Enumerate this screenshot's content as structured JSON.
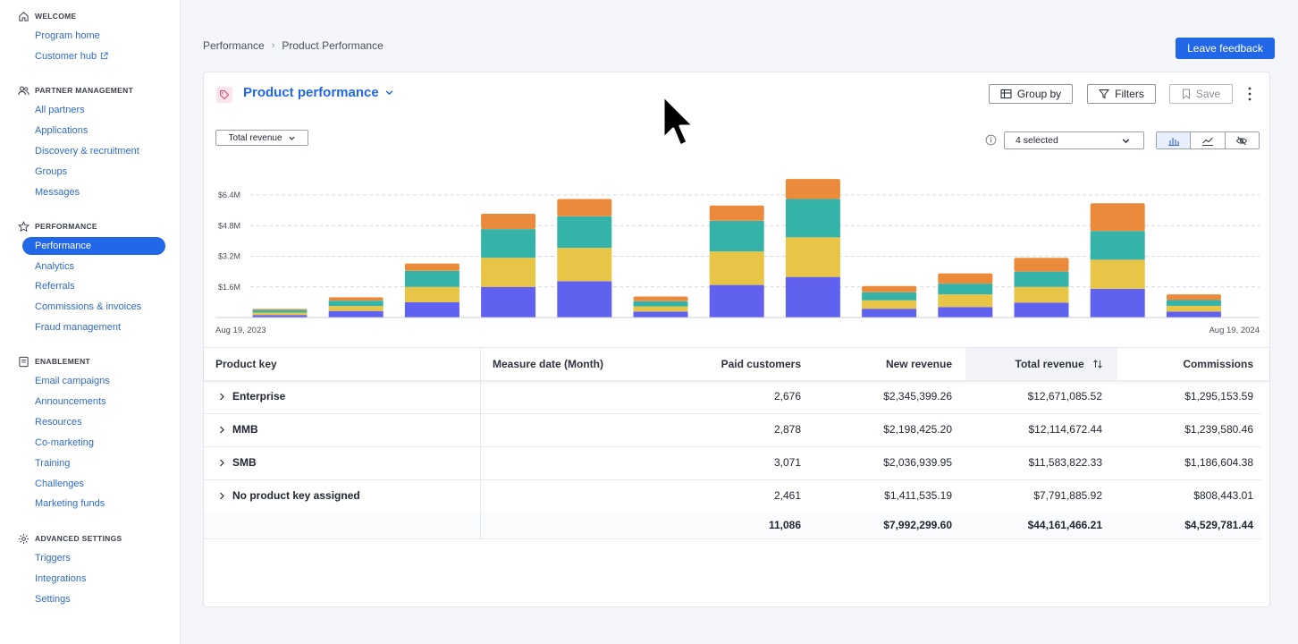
{
  "sidebar": {
    "sections": [
      {
        "title": "WELCOME",
        "icon": "home-icon",
        "items": [
          {
            "label": "Program home"
          },
          {
            "label": "Customer hub",
            "external": true
          }
        ]
      },
      {
        "title": "PARTNER MANAGEMENT",
        "icon": "users-icon",
        "items": [
          {
            "label": "All partners"
          },
          {
            "label": "Applications"
          },
          {
            "label": "Discovery & recruitment"
          },
          {
            "label": "Groups"
          },
          {
            "label": "Messages"
          }
        ]
      },
      {
        "title": "PERFORMANCE",
        "icon": "star-icon",
        "items": [
          {
            "label": "Performance",
            "active": true
          },
          {
            "label": "Analytics"
          },
          {
            "label": "Referrals"
          },
          {
            "label": "Commissions & invoices"
          },
          {
            "label": "Fraud management"
          }
        ]
      },
      {
        "title": "ENABLEMENT",
        "icon": "book-icon",
        "items": [
          {
            "label": "Email campaigns"
          },
          {
            "label": "Announcements"
          },
          {
            "label": "Resources"
          },
          {
            "label": "Co-marketing"
          },
          {
            "label": "Training"
          },
          {
            "label": "Challenges"
          },
          {
            "label": "Marketing funds"
          }
        ]
      },
      {
        "title": "ADVANCED SETTINGS",
        "icon": "gear-icon",
        "items": [
          {
            "label": "Triggers"
          },
          {
            "label": "Integrations"
          },
          {
            "label": "Settings"
          }
        ]
      }
    ]
  },
  "breadcrumb": {
    "parent": "Performance",
    "separator": "›",
    "current": "Product Performance"
  },
  "header": {
    "feedback_label": "Leave feedback"
  },
  "report": {
    "title": "Product performance",
    "group_by_label": "Group by",
    "filters_label": "Filters",
    "save_label": "Save",
    "metric_label": "Total revenue",
    "series_select_label": "4 selected"
  },
  "chart_data": {
    "type": "bar",
    "stacked": true,
    "x_start_label": "Aug 19, 2023",
    "x_end_label": "Aug 19, 2024",
    "yticks": [
      "$1.6M",
      "$3.2M",
      "$4.8M",
      "$6.4M"
    ],
    "ytick_values": [
      1.6,
      3.2,
      4.8,
      6.4
    ],
    "grid": "dashed horizontal",
    "colors": [
      "#6161f0",
      "#e8c547",
      "#36b3a8",
      "#eb8a3a"
    ],
    "series": [
      {
        "values": [
          0.13,
          0.34,
          0.8,
          1.6,
          1.9,
          0.31,
          1.7,
          2.12,
          0.46,
          0.55,
          0.78,
          1.5,
          0.31
        ]
      },
      {
        "values": [
          0.13,
          0.26,
          0.8,
          1.52,
          1.74,
          0.27,
          1.75,
          2.07,
          0.44,
          0.66,
          0.82,
          1.52,
          0.3
        ]
      },
      {
        "values": [
          0.13,
          0.28,
          0.84,
          1.5,
          1.65,
          0.27,
          1.6,
          2.0,
          0.42,
          0.56,
          0.8,
          1.5,
          0.3
        ]
      },
      {
        "values": [
          0.06,
          0.18,
          0.38,
          0.8,
          0.9,
          0.25,
          0.8,
          1.05,
          0.33,
          0.54,
          0.72,
          1.45,
          0.3
        ]
      }
    ]
  },
  "table": {
    "headers": [
      "Product key",
      "Measure date (Month)",
      "Paid customers",
      "New revenue",
      "Total revenue",
      "Commissions"
    ],
    "rows": [
      {
        "key": "Enterprise",
        "paid": "2,676",
        "new_rev": "$2,345,399.26",
        "total_rev": "$12,671,085.52",
        "comm": "$1,295,153.59"
      },
      {
        "key": "MMB",
        "paid": "2,878",
        "new_rev": "$2,198,425.20",
        "total_rev": "$12,114,672.44",
        "comm": "$1,239,580.46"
      },
      {
        "key": "SMB",
        "paid": "3,071",
        "new_rev": "$2,036,939.95",
        "total_rev": "$11,583,822.33",
        "comm": "$1,186,604.38"
      },
      {
        "key": "No product key assigned",
        "paid": "2,461",
        "new_rev": "$1,411,535.19",
        "total_rev": "$7,791,885.92",
        "comm": "$808,443.01"
      }
    ],
    "totals": {
      "paid": "11,086",
      "new_rev": "$7,992,299.60",
      "total_rev": "$44,161,466.21",
      "comm": "$4,529,781.44"
    }
  }
}
